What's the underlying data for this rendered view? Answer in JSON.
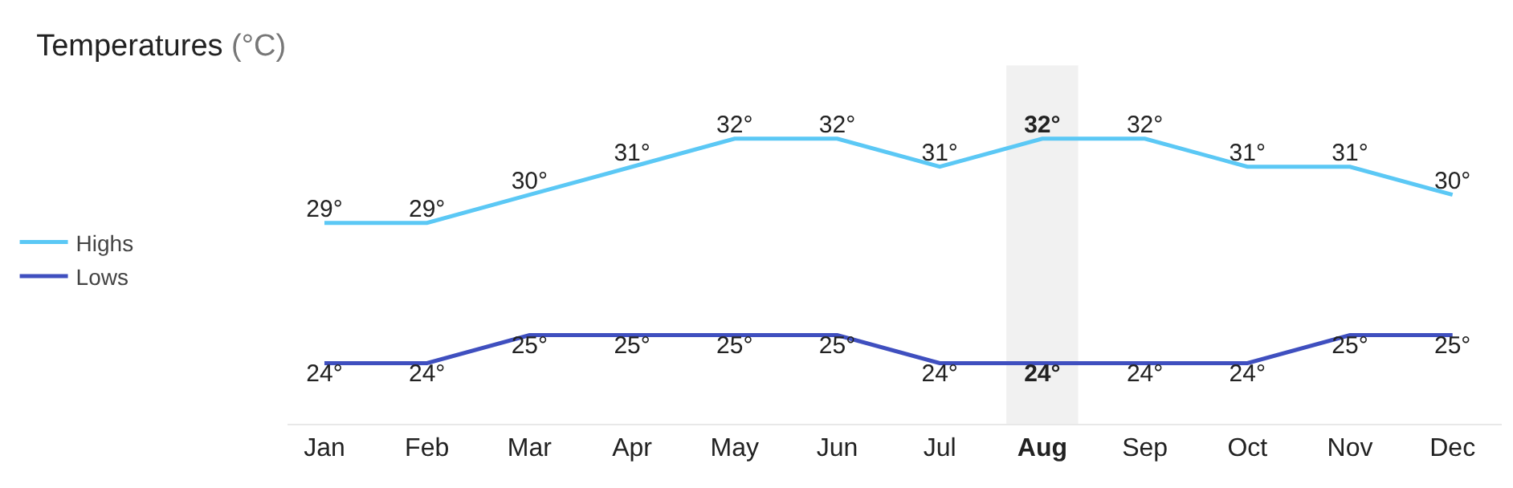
{
  "chart_data": {
    "type": "line",
    "title": "Temperatures",
    "subtitle": "(°C)",
    "categories": [
      "Jan",
      "Feb",
      "Mar",
      "Apr",
      "May",
      "Jun",
      "Jul",
      "Aug",
      "Sep",
      "Oct",
      "Nov",
      "Dec"
    ],
    "series": [
      {
        "name": "Highs",
        "color": "#5bc8f5",
        "values": [
          29,
          29,
          30,
          31,
          32,
          32,
          31,
          32,
          32,
          31,
          31,
          30
        ],
        "value_labels": [
          "29°",
          "29°",
          "30°",
          "31°",
          "32°",
          "32°",
          "31°",
          "32°",
          "32°",
          "31°",
          "31°",
          "30°"
        ]
      },
      {
        "name": "Lows",
        "color": "#3f4fbf",
        "values": [
          24,
          24,
          25,
          25,
          25,
          25,
          24,
          24,
          24,
          24,
          25,
          25
        ],
        "value_labels": [
          "24°",
          "24°",
          "25°",
          "25°",
          "25°",
          "25°",
          "24°",
          "24°",
          "24°",
          "24°",
          "25°",
          "25°"
        ]
      }
    ],
    "bands": [
      {
        "axis": "x",
        "from": "Aug",
        "to": "Aug",
        "color": "#f1f1f1"
      }
    ],
    "legend": "left",
    "grid": false,
    "marker": "none",
    "line_style": "solid"
  }
}
